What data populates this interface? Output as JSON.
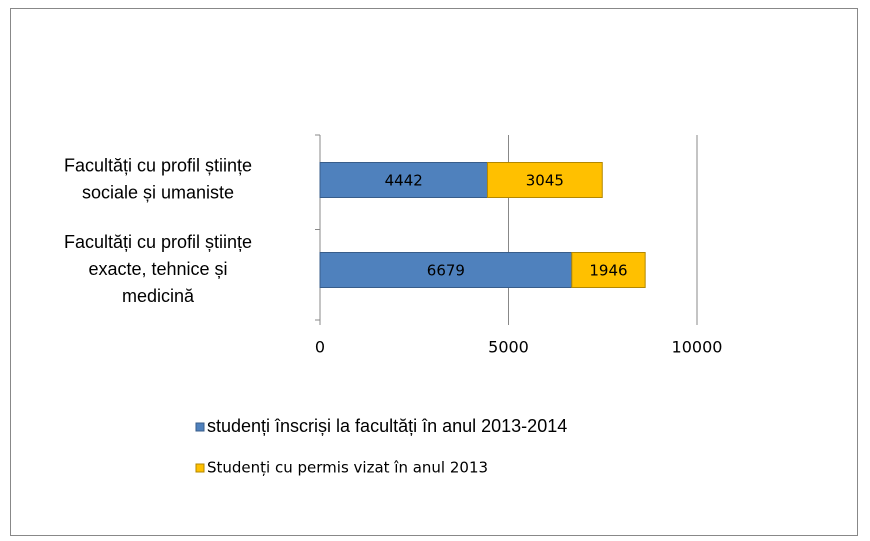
{
  "chart_data": {
    "type": "stacked-barh",
    "categories": [
      "Facultăți cu profil științe\nsociale și umaniste",
      "Facultăți cu profil științe\nexacte, tehnice și\nmedicină"
    ],
    "series": [
      {
        "name": "studenți înscriși la facultăți în anul 2013-2014",
        "color": "#4f81bd",
        "values": [
          4442,
          6679
        ]
      },
      {
        "name": "Studenți cu permis vizat în anul 2013",
        "color": "#ffc000",
        "values": [
          3045,
          1946
        ]
      }
    ],
    "xlim": [
      0,
      10000
    ],
    "xticks": [
      0,
      5000,
      10000
    ],
    "grid": true,
    "legend": "bottom"
  }
}
